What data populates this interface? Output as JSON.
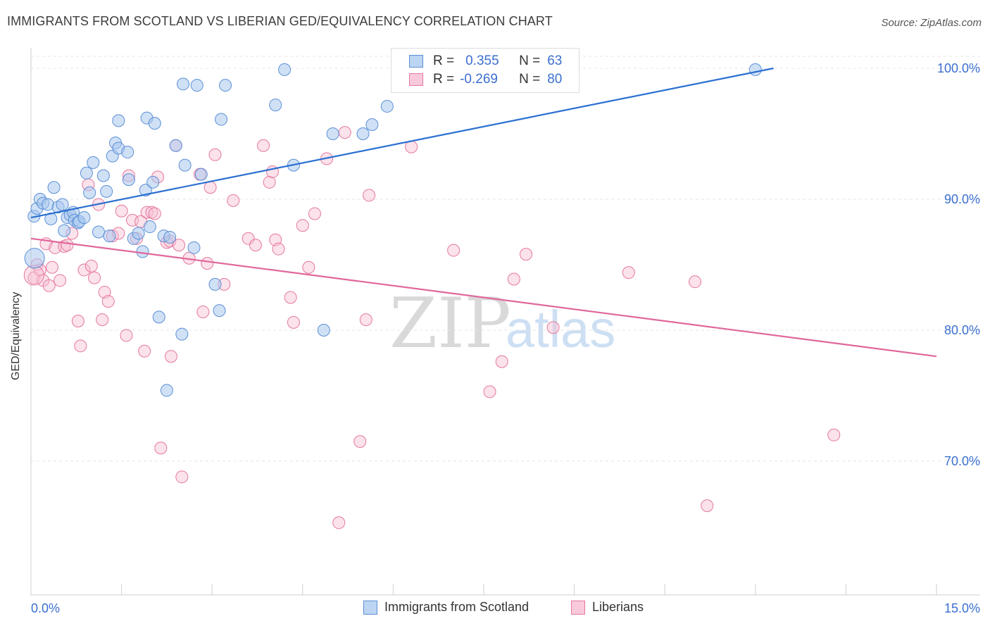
{
  "title": "IMMIGRANTS FROM SCOTLAND VS LIBERIAN GED/EQUIVALENCY CORRELATION CHART",
  "source": "Source: ZipAtlas.com",
  "watermark": {
    "part1": "ZIP",
    "part2": "atlas"
  },
  "legend": {
    "rows": [
      {
        "r_label": "R =",
        "r_value": "0.355",
        "n_label": "N =",
        "n_value": "63"
      },
      {
        "r_label": "R =",
        "r_value": "-0.269",
        "n_label": "N =",
        "n_value": "80"
      }
    ]
  },
  "bottom_legend": {
    "series1": "Immigrants from Scotland",
    "series2": "Liberians"
  },
  "colors": {
    "blue_fill": "#a9c8ee",
    "blue_stroke": "#5b8fd6",
    "blue_line": "#2a6fd1",
    "pink_fill": "#f7bfd3",
    "pink_stroke": "#e5789f",
    "pink_line": "#e0679a",
    "axis_text": "#3b6fcf"
  },
  "chart_data": {
    "type": "scatter",
    "title": "IMMIGRANTS FROM SCOTLAND VS LIBERIAN GED/EQUIVALENCY CORRELATION CHART",
    "xlabel": "",
    "ylabel": "GED/Equivalency",
    "xlim": [
      0,
      15
    ],
    "ylim": [
      60,
      100.3
    ],
    "x_tick_labels": [
      "0.0%",
      "15.0%"
    ],
    "y_ticks": [
      70,
      80,
      90,
      100
    ],
    "y_tick_labels": [
      "70.0%",
      "80.0%",
      "90.0%",
      "100.0%"
    ],
    "grid": true,
    "series": [
      {
        "name": "Immigrants from Scotland",
        "R": 0.355,
        "N": 63,
        "trend": {
          "x0": 0,
          "y0": 88.6,
          "x1": 12.3,
          "y1": 100.0
        },
        "points": [
          [
            0.05,
            88.7
          ],
          [
            0.1,
            89.3
          ],
          [
            0.15,
            90.0
          ],
          [
            0.2,
            89.7
          ],
          [
            0.28,
            89.6
          ],
          [
            0.33,
            88.5
          ],
          [
            0.38,
            90.9
          ],
          [
            0.45,
            89.4
          ],
          [
            0.52,
            89.6
          ],
          [
            0.55,
            87.6
          ],
          [
            0.6,
            88.6
          ],
          [
            0.65,
            88.8
          ],
          [
            0.7,
            89.0
          ],
          [
            0.72,
            88.4
          ],
          [
            0.78,
            88.2
          ],
          [
            0.8,
            88.3
          ],
          [
            0.88,
            88.6
          ],
          [
            0.92,
            92.0
          ],
          [
            0.97,
            90.5
          ],
          [
            1.03,
            92.8
          ],
          [
            1.12,
            87.5
          ],
          [
            1.2,
            91.8
          ],
          [
            1.25,
            90.6
          ],
          [
            1.3,
            87.2
          ],
          [
            1.35,
            93.3
          ],
          [
            1.4,
            94.3
          ],
          [
            1.45,
            93.9
          ],
          [
            1.45,
            96.0
          ],
          [
            1.6,
            93.6
          ],
          [
            1.62,
            91.5
          ],
          [
            1.7,
            87.0
          ],
          [
            1.78,
            87.4
          ],
          [
            1.85,
            86.0
          ],
          [
            1.9,
            90.7
          ],
          [
            1.92,
            96.2
          ],
          [
            1.97,
            87.9
          ],
          [
            2.02,
            91.3
          ],
          [
            2.05,
            95.8
          ],
          [
            2.12,
            81.0
          ],
          [
            2.2,
            87.2
          ],
          [
            2.25,
            75.4
          ],
          [
            2.3,
            87.1
          ],
          [
            2.4,
            94.1
          ],
          [
            2.5,
            79.7
          ],
          [
            2.52,
            98.8
          ],
          [
            2.55,
            92.6
          ],
          [
            2.7,
            86.3
          ],
          [
            2.75,
            98.7
          ],
          [
            2.82,
            91.9
          ],
          [
            3.05,
            83.5
          ],
          [
            3.12,
            81.5
          ],
          [
            3.15,
            96.1
          ],
          [
            3.22,
            98.7
          ],
          [
            4.05,
            97.2
          ],
          [
            4.2,
            99.9
          ],
          [
            4.35,
            92.6
          ],
          [
            4.85,
            80.0
          ],
          [
            5.0,
            95.0
          ],
          [
            5.5,
            95.0
          ],
          [
            5.65,
            95.7
          ],
          [
            5.9,
            97.1
          ],
          [
            12.0,
            99.9
          ],
          [
            0.06,
            85.5
          ]
        ]
      },
      {
        "name": "Liberians",
        "R": -0.269,
        "N": 80,
        "trend": {
          "x0": 0,
          "y0": 87.0,
          "x1": 15.0,
          "y1": 78.0
        },
        "points": [
          [
            0.05,
            84.0
          ],
          [
            0.1,
            85.0
          ],
          [
            0.15,
            84.6
          ],
          [
            0.2,
            83.8
          ],
          [
            0.25,
            86.6
          ],
          [
            0.3,
            83.4
          ],
          [
            0.35,
            84.8
          ],
          [
            0.4,
            86.3
          ],
          [
            0.48,
            83.8
          ],
          [
            0.55,
            86.4
          ],
          [
            0.6,
            86.5
          ],
          [
            0.68,
            87.4
          ],
          [
            0.78,
            80.7
          ],
          [
            0.82,
            78.8
          ],
          [
            0.88,
            84.6
          ],
          [
            0.95,
            91.1
          ],
          [
            1.0,
            84.9
          ],
          [
            1.05,
            84.0
          ],
          [
            1.12,
            89.6
          ],
          [
            1.18,
            80.8
          ],
          [
            1.22,
            82.9
          ],
          [
            1.28,
            82.2
          ],
          [
            1.35,
            87.2
          ],
          [
            1.45,
            87.4
          ],
          [
            1.5,
            89.1
          ],
          [
            1.58,
            79.6
          ],
          [
            1.62,
            91.8
          ],
          [
            1.68,
            88.4
          ],
          [
            1.75,
            87.0
          ],
          [
            1.82,
            88.3
          ],
          [
            1.88,
            78.4
          ],
          [
            1.92,
            89.0
          ],
          [
            2.0,
            89.0
          ],
          [
            2.05,
            88.9
          ],
          [
            2.1,
            91.7
          ],
          [
            2.15,
            71.0
          ],
          [
            2.25,
            86.7
          ],
          [
            2.3,
            86.8
          ],
          [
            2.32,
            78.0
          ],
          [
            2.4,
            94.1
          ],
          [
            2.45,
            86.5
          ],
          [
            2.5,
            68.8
          ],
          [
            2.62,
            85.5
          ],
          [
            2.8,
            91.9
          ],
          [
            2.85,
            81.4
          ],
          [
            2.92,
            85.1
          ],
          [
            2.97,
            90.9
          ],
          [
            3.05,
            93.4
          ],
          [
            3.2,
            83.5
          ],
          [
            3.35,
            89.9
          ],
          [
            3.6,
            87.0
          ],
          [
            3.72,
            86.5
          ],
          [
            3.85,
            94.1
          ],
          [
            3.95,
            91.3
          ],
          [
            4.0,
            92.1
          ],
          [
            4.05,
            86.9
          ],
          [
            4.1,
            86.2
          ],
          [
            4.3,
            82.5
          ],
          [
            4.35,
            80.6
          ],
          [
            4.5,
            88.0
          ],
          [
            4.6,
            84.8
          ],
          [
            4.7,
            88.9
          ],
          [
            4.9,
            93.1
          ],
          [
            5.1,
            65.3
          ],
          [
            5.2,
            95.1
          ],
          [
            5.45,
            71.5
          ],
          [
            5.55,
            80.8
          ],
          [
            5.6,
            90.3
          ],
          [
            6.3,
            94.0
          ],
          [
            7.0,
            86.1
          ],
          [
            7.6,
            75.3
          ],
          [
            7.8,
            77.6
          ],
          [
            8.0,
            83.9
          ],
          [
            8.2,
            85.8
          ],
          [
            8.65,
            80.2
          ],
          [
            9.9,
            84.4
          ],
          [
            11.0,
            83.7
          ],
          [
            11.2,
            66.6
          ],
          [
            13.3,
            72.0
          ],
          [
            0.05,
            84.2
          ]
        ]
      }
    ]
  }
}
